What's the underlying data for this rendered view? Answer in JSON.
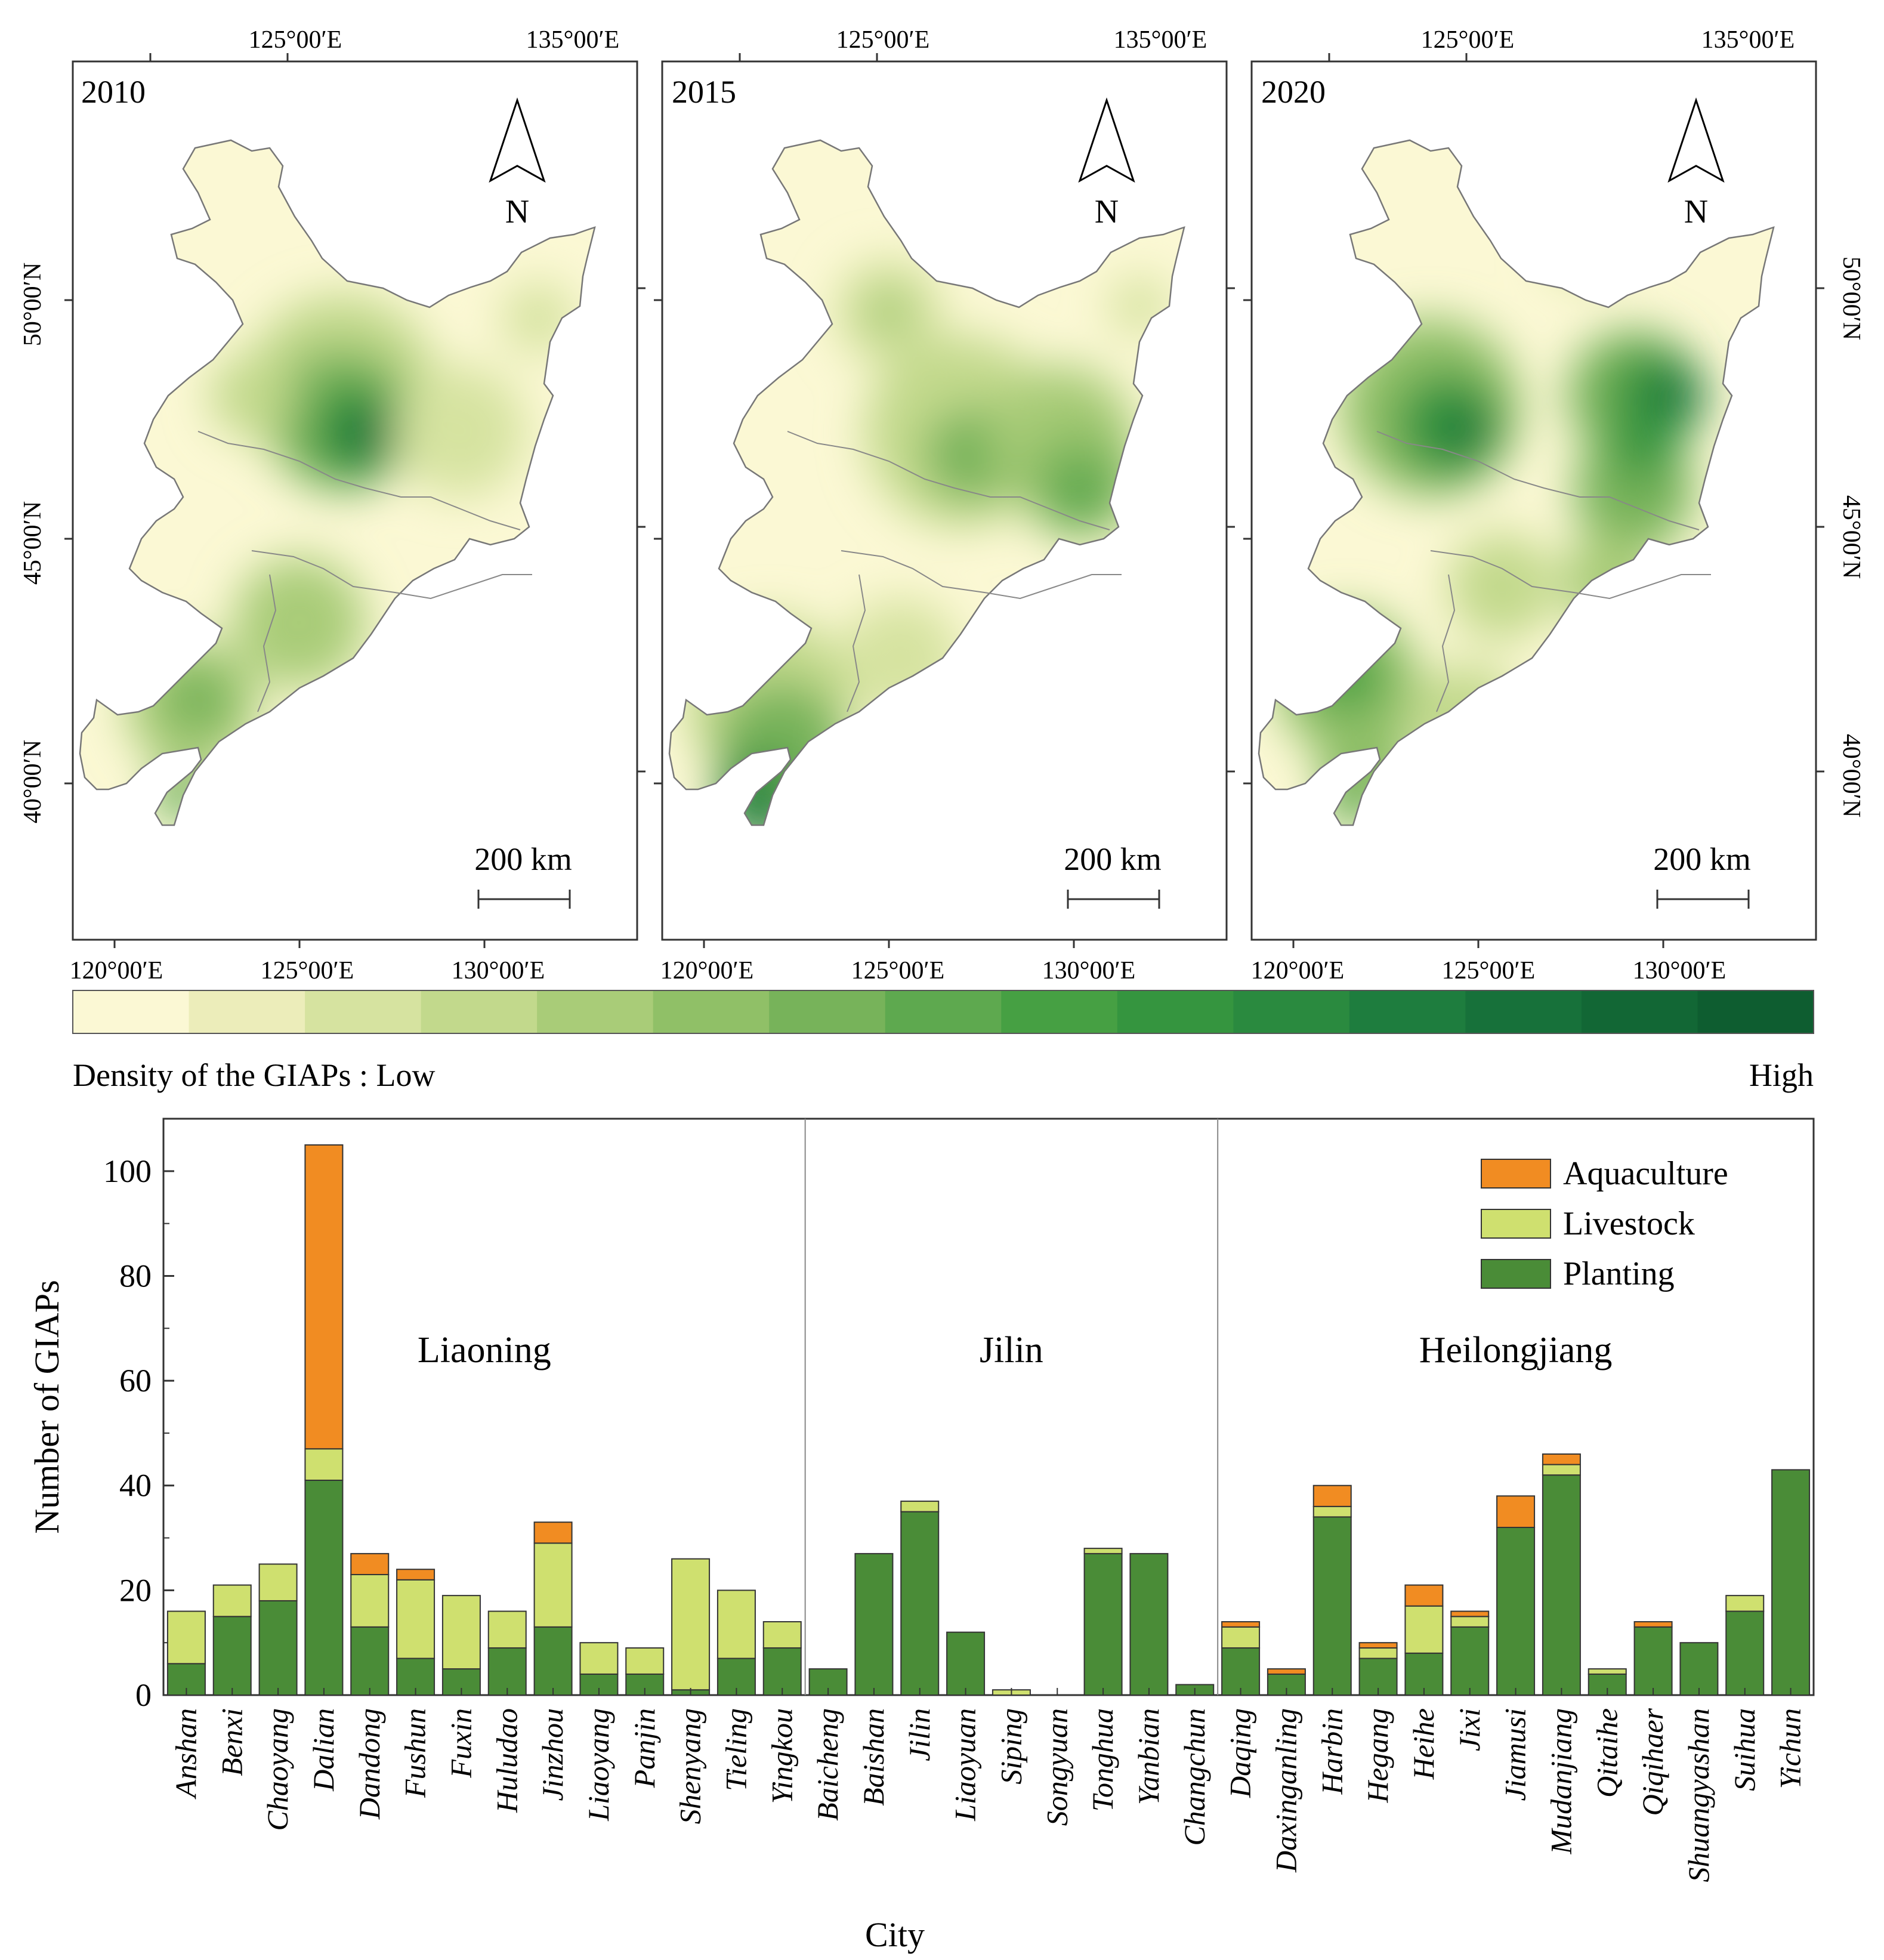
{
  "maps": {
    "panels": [
      {
        "year": "2010"
      },
      {
        "year": "2015"
      },
      {
        "year": "2020"
      }
    ],
    "top_lon_labels": [
      "125°00′E",
      "135°00′E"
    ],
    "bottom_lon_labels": [
      "120°00′E",
      "125°00′E",
      "130°00′E"
    ],
    "left_lat_labels": [
      "50°00′N",
      "45°00′N",
      "40°00′N"
    ],
    "right_lat_labels": [
      "50°00′N",
      "45°00′N",
      "40°00′N"
    ],
    "north_label": "N",
    "scale_label": "200 km",
    "legend": {
      "low_label": "Density of the GIAPs : Low",
      "high_label": "High",
      "colors": [
        "#fbf8d4",
        "#ecedba",
        "#d6e3a0",
        "#c2d98c",
        "#a9cc78",
        "#90c067",
        "#77b35a",
        "#5ea94f",
        "#46a043",
        "#35953f",
        "#2a8a3f",
        "#1e7d3e",
        "#17713a",
        "#126735",
        "#0e5d30"
      ]
    }
  },
  "chart_data": {
    "type": "bar",
    "stacked": true,
    "xlabel": "City",
    "ylabel": "Number of GIAPs",
    "ylim": [
      0,
      110
    ],
    "yticks": [
      0,
      20,
      40,
      60,
      80,
      100
    ],
    "categories": [
      "Anshan",
      "Benxi",
      "Chaoyang",
      "Dalian",
      "Dandong",
      "Fushun",
      "Fuxin",
      "Huludao",
      "Jinzhou",
      "Liaoyang",
      "Panjin",
      "Shenyang",
      "Tieling",
      "Yingkou",
      "Baicheng",
      "Baishan",
      "Jilin",
      "Liaoyuan",
      "Siping",
      "Songyuan",
      "Tonghua",
      "Yanbian",
      "Changchun",
      "Daqing",
      "Daxinganling",
      "Harbin",
      "Hegang",
      "Heihe",
      "Jixi",
      "Jiamusi",
      "Mudanjiang",
      "Qitaihe",
      "Qiqihaer",
      "Shuangyashan",
      "Suihua",
      "Yichun"
    ],
    "series": [
      {
        "name": "Planting",
        "color": "#4a8c37",
        "values": [
          6,
          15,
          18,
          41,
          13,
          7,
          5,
          9,
          13,
          4,
          4,
          1,
          7,
          9,
          5,
          27,
          35,
          12,
          0,
          0,
          27,
          27,
          2,
          9,
          4,
          34,
          7,
          8,
          13,
          32,
          42,
          4,
          13,
          10,
          16,
          43
        ]
      },
      {
        "name": "Livestock",
        "color": "#cfe06f",
        "values": [
          10,
          6,
          7,
          6,
          10,
          15,
          14,
          7,
          16,
          6,
          5,
          25,
          13,
          5,
          0,
          0,
          2,
          0,
          1,
          0,
          1,
          0,
          0,
          4,
          0,
          2,
          2,
          9,
          2,
          0,
          2,
          1,
          0,
          0,
          3,
          0
        ]
      },
      {
        "name": "Aquaculture",
        "color": "#f18c22",
        "values": [
          0,
          0,
          0,
          58,
          4,
          2,
          0,
          0,
          4,
          0,
          0,
          0,
          0,
          0,
          0,
          0,
          0,
          0,
          0,
          0,
          0,
          0,
          0,
          1,
          1,
          4,
          1,
          4,
          1,
          6,
          2,
          0,
          1,
          0,
          0,
          0
        ]
      }
    ],
    "legend_order": [
      "Aquaculture",
      "Livestock",
      "Planting"
    ],
    "groups": [
      {
        "label": "Liaoning",
        "start": 0,
        "end": 13
      },
      {
        "label": "Jilin",
        "start": 14,
        "end": 22
      },
      {
        "label": "Heilongjiang",
        "start": 23,
        "end": 35
      }
    ]
  }
}
